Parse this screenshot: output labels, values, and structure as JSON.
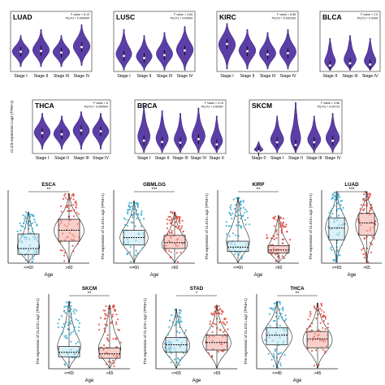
{
  "colors": {
    "violin": "#5b3ea6",
    "violin_edge": "#3a1f7a",
    "young": "#33aacc",
    "old": "#e0463a",
    "young_box": "#bde4f0",
    "old_box": "#f2a9a1",
    "axis": "#222222"
  },
  "chart_data": [
    {
      "type": "violin",
      "title": "LUAD",
      "stat_f": "F value = 6.13",
      "stat_p": "Pr(>F) = 0.000544",
      "categories": [
        "Stage I",
        "Stage II",
        "Stage III",
        "Stage IV"
      ],
      "ylabel": ""
    },
    {
      "type": "violin",
      "title": "LUSC",
      "stat_f": "F value = 3.84",
      "stat_p": "Pr(>F) = 0.00993",
      "categories": [
        "Stage I",
        "Stage II",
        "Stage III",
        "Stage IV"
      ],
      "ylabel": ""
    },
    {
      "type": "violin",
      "title": "KIRC",
      "stat_f": "F value = 6.85",
      "stat_p": "Pr(>F) = 0.000163",
      "categories": [
        "Stage I",
        "Stage II",
        "Stage III",
        "Stage IV"
      ],
      "ylabel": ""
    },
    {
      "type": "violin",
      "title": "BLCA",
      "stat_f": "F value = 2.9",
      "stat_p": "Pr(>F) = 0.0349",
      "categories": [
        "Stage II",
        "Stage III",
        "Stage IV"
      ],
      "ylabel": ""
    },
    {
      "type": "violin",
      "title": "THCA",
      "stat_f": "F value = 6",
      "stat_p": "Pr(>F) = 0.000504",
      "categories": [
        "Stage I",
        "Stage II",
        "Stage III",
        "Stage IV"
      ],
      "ylabel": "CLIC5 expression Log2 (TPM+1)"
    },
    {
      "type": "violin",
      "title": "BRCA",
      "stat_f": "F value = 4.13",
      "stat_p": "Pr(>F) = 0.00257",
      "categories": [
        "Stage I",
        "Stage II",
        "Stage III",
        "Stage IV",
        "Stage X"
      ],
      "ylabel": ""
    },
    {
      "type": "violin",
      "title": "SKCM",
      "stat_f": "F value = 3.56",
      "stat_p": "Pr(>F) = 0.00714",
      "categories": [
        "Stage 0",
        "Stage I",
        "Stage II",
        "Stage III",
        "Stage IV"
      ],
      "ylabel": ""
    },
    {
      "type": "box",
      "title": "ESCA",
      "sig": "**",
      "categories": [
        "<=60",
        ">60"
      ],
      "xlabel": "Age",
      "ylabel": ""
    },
    {
      "type": "box",
      "title": "GBMLGG",
      "sig": "***",
      "categories": [
        "<=60",
        ">60"
      ],
      "xlabel": "Age",
      "ylabel": "The expression of CLIC5 Log2 (TPM+1)"
    },
    {
      "type": "box",
      "title": "KIRP",
      "sig": "**",
      "categories": [
        "<=60",
        ">60"
      ],
      "xlabel": "Age",
      "ylabel": "The expression of CLIC5 Log2 (TPM+1)"
    },
    {
      "type": "box",
      "title": "LUAD",
      "sig": "***",
      "categories": [
        "<=65",
        ">65"
      ],
      "xlabel": "Age",
      "ylabel": "The expression of CLIC5 Log2 (TPM+1)"
    },
    {
      "type": "box",
      "title": "SKCM",
      "sig": "**",
      "categories": [
        "<=65",
        ">65"
      ],
      "xlabel": "Age",
      "ylabel": "The expression of CLIC5 Log2 (TPM+1)"
    },
    {
      "type": "box",
      "title": "STAD",
      "sig": "*",
      "categories": [
        "<=65",
        ">65"
      ],
      "xlabel": "Age",
      "ylabel": "The expression of CLIC5 Log2 (TPM+1)"
    },
    {
      "type": "box",
      "title": "THCA",
      "sig": "**",
      "categories": [
        "<=45",
        ">45"
      ],
      "xlabel": "Age",
      "ylabel": "The expression of CLIC5 Log2 (TPM+1)"
    }
  ]
}
